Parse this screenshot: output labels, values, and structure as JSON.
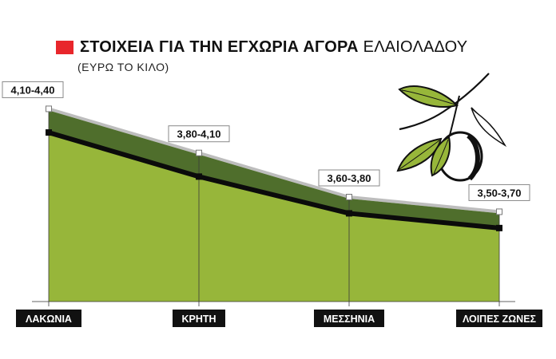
{
  "title": {
    "bold": "ΣΤΟΙΧΕΙΑ ΓΙΑ ΤΗΝ ΕΓΧΩΡΙΑ ΑΓΟΡΑ",
    "light": "ΕΛΑΙΟΛΑΔΟΥ",
    "subtitle": "(ΕΥΡΩ ΤΟ ΚΙΛΟ)"
  },
  "colors": {
    "accent": "#e8262b",
    "band": "#4f6e2c",
    "lower": "#97b63a",
    "average_line": "#0b0b0b",
    "top_edge": "#bdbdbd"
  },
  "decoration": "olive-branch-icon",
  "chart_data": {
    "type": "area",
    "categories": [
      "ΛΑΚΩΝΙΑ",
      "ΚΡΗΤΗ",
      "ΜΕΣΣΗΝΙΑ",
      "ΛΟΙΠΕΣ ΖΩΝΕΣ"
    ],
    "range_labels": [
      "4,10-4,40",
      "3,80-4,10",
      "3,60-3,80",
      "3,50-3,70"
    ],
    "series": [
      {
        "values": [
          4.1,
          3.8,
          3.6,
          3.5
        ]
      },
      {
        "values": [
          4.4,
          4.1,
          3.8,
          3.7
        ]
      }
    ],
    "ylim": [
      3.1,
      4.5
    ]
  }
}
